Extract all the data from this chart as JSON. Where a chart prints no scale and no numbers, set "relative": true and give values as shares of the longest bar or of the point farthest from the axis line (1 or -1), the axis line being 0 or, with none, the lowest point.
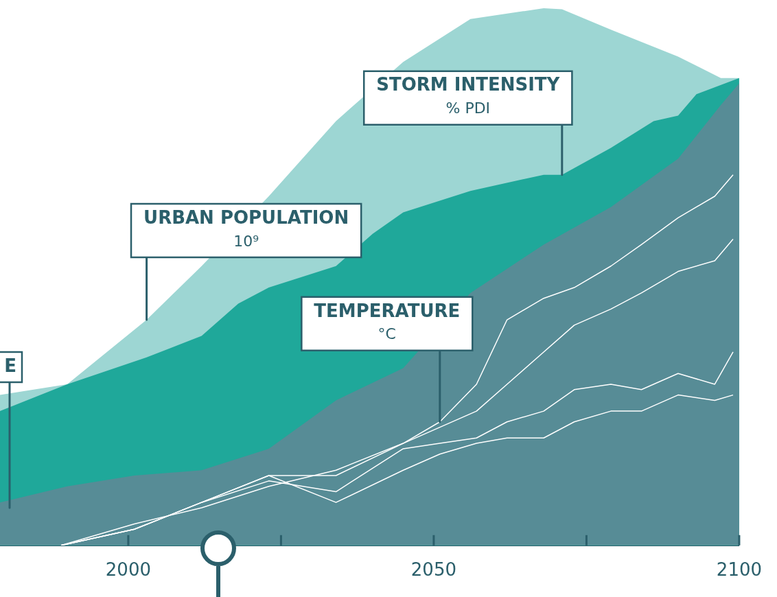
{
  "chart_data": {
    "type": "area",
    "relative": true,
    "xlim": [
      1979,
      2100
    ],
    "xticks": [
      2000,
      {
        "value": 2025,
        "label": null
      },
      2050,
      {
        "value": 2075,
        "label": null
      },
      2100
    ],
    "series": [
      {
        "color": "#9dd6d3",
        "x": [
          1979,
          1990,
          2003,
          2012,
          2023,
          2034,
          2045,
          2056,
          2068,
          2071,
          2079,
          2090,
          2097,
          2100
        ],
        "values": [
          0.28,
          0.3,
          0.42,
          0.52,
          0.65,
          0.79,
          0.9,
          0.98,
          1,
          0.998,
          0.96,
          0.91,
          0.87,
          0.87
        ]
      },
      {
        "color": "#1fa89a",
        "x": [
          1979,
          1990,
          2003,
          2012,
          2018,
          2023,
          2034,
          2040,
          2045,
          2056,
          2068,
          2071,
          2079,
          2086,
          2090,
          2093,
          2100
        ],
        "values": [
          0.25,
          0.3,
          0.35,
          0.39,
          0.45,
          0.48,
          0.52,
          0.58,
          0.62,
          0.66,
          0.69,
          0.69,
          0.74,
          0.79,
          0.8,
          0.84,
          0.87
        ]
      },
      {
        "color": "#578c96",
        "x": [
          1979,
          1990,
          2001,
          2012,
          2023,
          2034,
          2045,
          2056,
          2068,
          2079,
          2090,
          2097,
          2100
        ],
        "values": [
          0.08,
          0.11,
          0.13,
          0.14,
          0.18,
          0.27,
          0.33,
          0.47,
          0.56,
          0.63,
          0.72,
          0.82,
          0.86
        ]
      },
      {
        "type": "line",
        "color": "#ffffff",
        "x": [
          1989,
          2001,
          2012,
          2023,
          2034,
          2045,
          2051,
          2057,
          2062,
          2068,
          2073,
          2079,
          2084,
          2090,
          2096,
          2099
        ],
        "values": [
          0,
          0.04,
          0.07,
          0.11,
          0.14,
          0.19,
          0.23,
          0.3,
          0.42,
          0.46,
          0.48,
          0.52,
          0.56,
          0.61,
          0.65,
          0.69
        ]
      },
      {
        "type": "line",
        "color": "#ffffff",
        "x": [
          1989,
          2001,
          2012,
          2023,
          2034,
          2045,
          2051,
          2057,
          2062,
          2068,
          2073,
          2079,
          2084,
          2090,
          2096,
          2099
        ],
        "values": [
          0,
          0.03,
          0.08,
          0.13,
          0.13,
          0.19,
          0.22,
          0.25,
          0.3,
          0.36,
          0.41,
          0.44,
          0.47,
          0.51,
          0.53,
          0.57
        ]
      },
      {
        "type": "line",
        "color": "#ffffff",
        "x": [
          1989,
          2001,
          2012,
          2023,
          2034,
          2045,
          2051,
          2057,
          2062,
          2068,
          2073,
          2079,
          2084,
          2090,
          2096,
          2099
        ],
        "values": [
          0,
          0.03,
          0.08,
          0.12,
          0.1,
          0.18,
          0.19,
          0.2,
          0.23,
          0.25,
          0.29,
          0.3,
          0.29,
          0.32,
          0.3,
          0.36
        ]
      },
      {
        "type": "line",
        "color": "#ffffff",
        "x": [
          1989,
          2001,
          2012,
          2023,
          2034,
          2045,
          2051,
          2057,
          2062,
          2068,
          2073,
          2079,
          2084,
          2090,
          2096,
          2099
        ],
        "values": [
          0,
          0.03,
          0.08,
          0.13,
          0.08,
          0.14,
          0.17,
          0.19,
          0.2,
          0.2,
          0.23,
          0.25,
          0.25,
          0.28,
          0.27,
          0.28
        ]
      }
    ],
    "annotations": [
      {
        "text": "STORM INTENSITY\n% PDI",
        "x": 2071,
        "y": 0.69
      },
      {
        "text": "URBAN POPULATION\n10⁹",
        "x": 2003,
        "y": 0.42
      },
      {
        "text": "TEMPERATURE\n°C",
        "x": 2051,
        "y": 0.23
      },
      "E"
    ]
  }
}
